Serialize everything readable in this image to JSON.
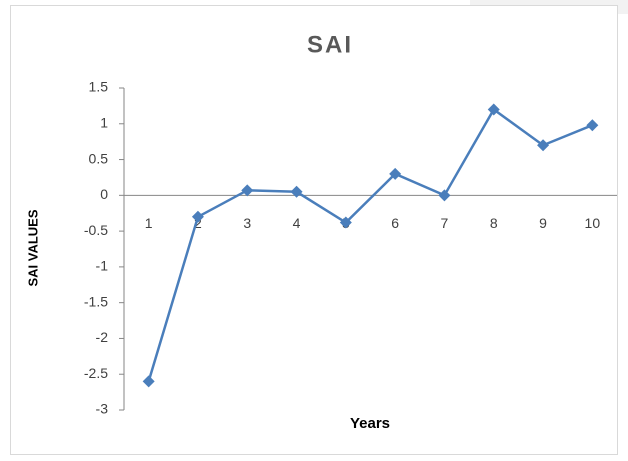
{
  "chart_data": {
    "type": "line",
    "title": "SAI",
    "x_label": "Years",
    "y_label": "SAI VALUES",
    "categories": [
      "1",
      "2",
      "3",
      "4",
      "5",
      "6",
      "7",
      "8",
      "9",
      "10"
    ],
    "series": [
      {
        "name": "SAI",
        "color": "#4a7ebb",
        "values": [
          -2.6,
          -0.3,
          0.07,
          0.05,
          -0.38,
          0.3,
          0.0,
          1.2,
          0.7,
          0.98
        ]
      }
    ],
    "ylim": [
      -3,
      1.5
    ],
    "yticks": [
      -3,
      -2.5,
      -2,
      -1.5,
      -1,
      -0.5,
      0,
      0.5,
      1,
      1.5
    ],
    "grid": false,
    "legend": false
  }
}
